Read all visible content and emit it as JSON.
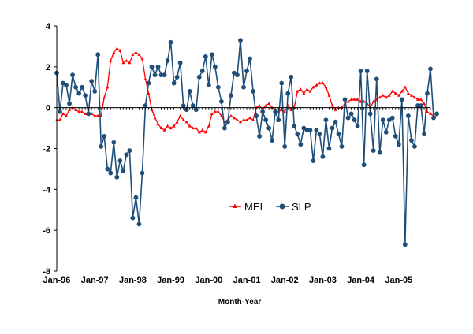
{
  "chart_data": {
    "type": "line",
    "title": "",
    "xlabel": "Month-Year",
    "ylabel": "",
    "ylim": [
      -8,
      4
    ],
    "yticks": [
      4,
      2,
      0,
      -2,
      -4,
      -6,
      -8
    ],
    "xticks": [
      "Jan-96",
      "Jan-97",
      "Jan-98",
      "Jan-99",
      "Jan-00",
      "Jan-01",
      "Jan-02",
      "Jan-03",
      "Jan-04",
      "Jan-05"
    ],
    "grid": false,
    "legend_position": "center",
    "x_start": "1996-01",
    "x_end": "2005-10",
    "series": [
      {
        "name": "MEI",
        "color": "#ff0000",
        "marker": "triangle",
        "values": [
          -0.6,
          -0.6,
          -0.3,
          -0.4,
          -0.1,
          0.0,
          -0.1,
          -0.2,
          -0.2,
          -0.3,
          -0.3,
          -0.3,
          -0.4,
          -0.4,
          -0.4,
          0.5,
          1.0,
          2.3,
          2.7,
          2.9,
          2.8,
          2.2,
          2.3,
          2.2,
          2.6,
          2.7,
          2.6,
          2.4,
          1.4,
          0.7,
          -0.1,
          -0.5,
          -0.8,
          -1.0,
          -1.1,
          -0.9,
          -1.0,
          -0.9,
          -0.7,
          -0.4,
          -0.6,
          -0.7,
          -0.9,
          -1.0,
          -1.0,
          -1.2,
          -1.1,
          -1.2,
          -0.9,
          -0.3,
          -0.2,
          -0.2,
          -0.4,
          -0.7,
          -0.6,
          -0.4,
          -0.5,
          -0.6,
          -0.7,
          -0.6,
          -0.6,
          -0.5,
          -0.6,
          0.0,
          0.1,
          -0.1,
          0.1,
          0.2,
          0.0,
          -0.1,
          -0.2,
          -0.1,
          -0.2,
          0.1,
          -0.1,
          0.0,
          0.8,
          0.9,
          0.7,
          0.9,
          0.8,
          1.0,
          1.1,
          1.2,
          1.2,
          1.0,
          0.6,
          0.1,
          -0.1,
          0.0,
          0.0,
          0.2,
          0.3,
          0.4,
          0.4,
          0.4,
          0.3,
          0.3,
          0.2,
          0.0,
          0.3,
          0.4,
          0.5,
          0.6,
          0.5,
          0.6,
          0.8,
          0.7,
          0.6,
          0.8,
          1.0,
          0.7,
          0.6,
          0.5,
          0.4,
          0.4,
          0.2,
          -0.2,
          -0.3,
          -0.4
        ]
      },
      {
        "name": "SLP",
        "color": "#1f4e79",
        "marker": "circle",
        "values": [
          1.7,
          -0.2,
          1.2,
          1.1,
          0.2,
          1.6,
          1.0,
          0.7,
          1.0,
          0.6,
          -0.3,
          1.3,
          0.8,
          2.6,
          -1.9,
          -1.4,
          -3.0,
          -3.2,
          -1.7,
          -3.4,
          -2.6,
          -3.1,
          -2.3,
          -2.1,
          -5.4,
          -4.4,
          -5.7,
          -3.2,
          0.1,
          1.2,
          2.0,
          1.6,
          2.0,
          1.6,
          1.6,
          2.3,
          3.2,
          1.2,
          1.5,
          2.2,
          0.1,
          -0.1,
          0.8,
          0.1,
          -0.1,
          1.5,
          1.8,
          2.5,
          1.1,
          2.6,
          2.0,
          1.0,
          0.3,
          -1.0,
          -0.7,
          0.6,
          1.7,
          1.6,
          3.3,
          1.0,
          1.8,
          2.4,
          0.8,
          -0.4,
          -1.4,
          -0.2,
          -0.6,
          -1.0,
          -1.6,
          -0.2,
          -0.6,
          1.2,
          -1.9,
          0.7,
          1.5,
          -0.9,
          -1.3,
          -1.8,
          -1.0,
          -1.1,
          -1.1,
          -2.6,
          -1.1,
          -1.3,
          -2.4,
          -0.6,
          -2.0,
          -1.0,
          -0.7,
          -1.3,
          -1.9,
          0.4,
          -0.5,
          -0.3,
          -0.6,
          -0.9,
          1.8,
          -2.8,
          1.8,
          -0.3,
          -2.1,
          1.4,
          -2.2,
          -0.6,
          -1.2,
          -0.6,
          -0.5,
          -1.4,
          -1.8,
          0.4,
          -6.7,
          -0.4,
          -1.6,
          -1.9,
          0.1,
          0.1,
          -1.3,
          0.7,
          1.9,
          -0.5,
          -0.3
        ]
      }
    ]
  }
}
